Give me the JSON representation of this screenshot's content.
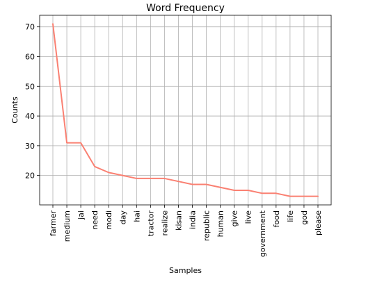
{
  "chart_data": {
    "type": "line",
    "title": "Word Frequency",
    "xlabel": "Samples",
    "ylabel": "Counts",
    "categories": [
      "farmer",
      "medium",
      "jai",
      "need",
      "modi",
      "day",
      "hai",
      "tractor",
      "realize",
      "kisan",
      "india",
      "republic",
      "human",
      "give",
      "live",
      "government",
      "food",
      "life",
      "god",
      "please"
    ],
    "values": [
      71,
      31,
      31,
      23,
      21,
      20,
      19,
      19,
      19,
      18,
      17,
      17,
      16,
      15,
      15,
      14,
      14,
      13,
      13,
      13
    ],
    "ylim": [
      10.1,
      73.9
    ],
    "yticks": [
      20,
      30,
      40,
      50,
      60,
      70
    ],
    "grid": true,
    "line_color": "#fa8072"
  }
}
